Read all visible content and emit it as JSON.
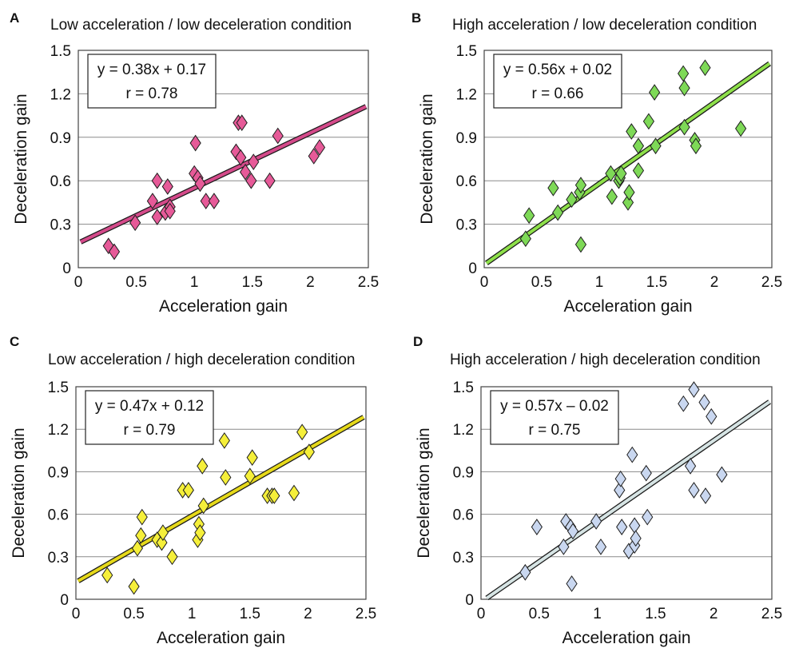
{
  "figure": {
    "axis": {
      "xlabel": "Acceleration gain",
      "ylabel": "Deceleration gain",
      "x_ticks": [
        "0",
        "0.5",
        "1",
        "1.5",
        "2",
        "2.5"
      ],
      "y_ticks": [
        "0",
        "0.3",
        "0.6",
        "0.9",
        "1.2",
        "1.5"
      ],
      "xlim": [
        0,
        2.5
      ],
      "ylim": [
        0,
        1.5
      ],
      "grid": "horizontal"
    }
  },
  "chart_data": [
    {
      "type": "scatter",
      "panel_label": "A",
      "title": "Low acceleration / low deceleration condition",
      "xlabel": "Acceleration gain",
      "ylabel": "Deceleration gain",
      "xlim": [
        0,
        2.5
      ],
      "ylim": [
        0,
        1.5
      ],
      "marker_color": "#e65a98",
      "line_color": "#d44a8a",
      "equation": "y = 0.38x + 0.17",
      "r_text": "r  = 0.78",
      "fit": {
        "slope": 0.38,
        "intercept": 0.17,
        "x_range": [
          0.02,
          2.48
        ]
      },
      "points": [
        [
          0.26,
          0.15
        ],
        [
          0.31,
          0.11
        ],
        [
          0.49,
          0.31
        ],
        [
          0.64,
          0.46
        ],
        [
          0.68,
          0.6
        ],
        [
          0.68,
          0.35
        ],
        [
          0.75,
          0.38
        ],
        [
          0.77,
          0.56
        ],
        [
          0.79,
          0.42
        ],
        [
          0.79,
          0.39
        ],
        [
          1.0,
          0.65
        ],
        [
          1.01,
          0.86
        ],
        [
          1.03,
          0.62
        ],
        [
          1.05,
          0.58
        ],
        [
          1.1,
          0.46
        ],
        [
          1.17,
          0.46
        ],
        [
          1.36,
          0.8
        ],
        [
          1.38,
          1.0
        ],
        [
          1.41,
          1.0
        ],
        [
          1.4,
          0.76
        ],
        [
          1.44,
          0.66
        ],
        [
          1.49,
          0.6
        ],
        [
          1.51,
          0.73
        ],
        [
          1.65,
          0.6
        ],
        [
          1.72,
          0.91
        ],
        [
          2.03,
          0.77
        ],
        [
          2.08,
          0.83
        ]
      ]
    },
    {
      "type": "scatter",
      "panel_label": "B",
      "title": "High acceleration / low deceleration condition",
      "xlabel": "Acceleration gain",
      "ylabel": "Deceleration gain",
      "xlim": [
        0,
        2.5
      ],
      "ylim": [
        0,
        1.5
      ],
      "marker_color": "#7ed957",
      "line_color": "#8ee04a",
      "equation": "y = 0.56x + 0.02",
      "r_text": "r  = 0.66",
      "fit": {
        "slope": 0.56,
        "intercept": 0.02,
        "x_range": [
          0.02,
          2.48
        ]
      },
      "points": [
        [
          0.36,
          0.2
        ],
        [
          0.39,
          0.36
        ],
        [
          0.6,
          0.55
        ],
        [
          0.64,
          0.38
        ],
        [
          0.76,
          0.47
        ],
        [
          0.83,
          0.52
        ],
        [
          0.84,
          0.57
        ],
        [
          0.84,
          0.16
        ],
        [
          1.1,
          0.65
        ],
        [
          1.11,
          0.49
        ],
        [
          1.17,
          0.6
        ],
        [
          1.18,
          0.62
        ],
        [
          1.19,
          0.65
        ],
        [
          1.25,
          0.45
        ],
        [
          1.26,
          0.52
        ],
        [
          1.28,
          0.94
        ],
        [
          1.34,
          0.67
        ],
        [
          1.34,
          0.84
        ],
        [
          1.43,
          1.01
        ],
        [
          1.48,
          1.21
        ],
        [
          1.49,
          0.84
        ],
        [
          1.73,
          1.34
        ],
        [
          1.74,
          1.24
        ],
        [
          1.74,
          0.97
        ],
        [
          1.83,
          0.88
        ],
        [
          1.84,
          0.84
        ],
        [
          1.92,
          1.38
        ],
        [
          2.23,
          0.96
        ]
      ]
    },
    {
      "type": "scatter",
      "panel_label": "C",
      "title": "Low acceleration / high deceleration condition",
      "xlabel": "Acceleration gain",
      "ylabel": "Deceleration gain",
      "xlim": [
        0,
        2.5
      ],
      "ylim": [
        0,
        1.5
      ],
      "marker_color": "#f5ef3a",
      "line_color": "#e6d91a",
      "equation": "y = 0.47x + 0.12",
      "r_text": "r  = 0.79",
      "fit": {
        "slope": 0.47,
        "intercept": 0.12,
        "x_range": [
          0.02,
          2.48
        ]
      },
      "points": [
        [
          0.27,
          0.17
        ],
        [
          0.5,
          0.09
        ],
        [
          0.53,
          0.36
        ],
        [
          0.56,
          0.45
        ],
        [
          0.57,
          0.58
        ],
        [
          0.7,
          0.42
        ],
        [
          0.74,
          0.4
        ],
        [
          0.75,
          0.47
        ],
        [
          0.83,
          0.3
        ],
        [
          0.92,
          0.77
        ],
        [
          0.97,
          0.77
        ],
        [
          1.05,
          0.42
        ],
        [
          1.06,
          0.53
        ],
        [
          1.07,
          0.47
        ],
        [
          1.09,
          0.94
        ],
        [
          1.1,
          0.66
        ],
        [
          1.28,
          1.12
        ],
        [
          1.29,
          0.86
        ],
        [
          1.5,
          0.87
        ],
        [
          1.52,
          1.0
        ],
        [
          1.65,
          0.73
        ],
        [
          1.69,
          0.73
        ],
        [
          1.71,
          0.73
        ],
        [
          1.88,
          0.75
        ],
        [
          1.95,
          1.18
        ],
        [
          2.01,
          1.04
        ]
      ]
    },
    {
      "type": "scatter",
      "panel_label": "D",
      "title": "High acceleration / high deceleration condition",
      "xlabel": "Acceleration gain",
      "ylabel": "Deceleration gain",
      "xlim": [
        0,
        2.5
      ],
      "ylim": [
        0,
        1.5
      ],
      "marker_color": "#c9d7f0",
      "line_color": "#d6e4e4",
      "equation": "y = 0.57x – 0.02",
      "r_text": "r  = 0.75",
      "fit": {
        "slope": 0.57,
        "intercept": -0.02,
        "x_range": [
          0.05,
          2.48
        ]
      },
      "points": [
        [
          0.38,
          0.19
        ],
        [
          0.48,
          0.51
        ],
        [
          0.71,
          0.37
        ],
        [
          0.73,
          0.55
        ],
        [
          0.77,
          0.51
        ],
        [
          0.78,
          0.11
        ],
        [
          0.79,
          0.48
        ],
        [
          0.99,
          0.55
        ],
        [
          1.03,
          0.37
        ],
        [
          1.19,
          0.77
        ],
        [
          1.2,
          0.85
        ],
        [
          1.21,
          0.51
        ],
        [
          1.27,
          0.34
        ],
        [
          1.3,
          1.02
        ],
        [
          1.32,
          0.52
        ],
        [
          1.32,
          0.38
        ],
        [
          1.33,
          0.43
        ],
        [
          1.42,
          0.89
        ],
        [
          1.43,
          0.58
        ],
        [
          1.74,
          1.38
        ],
        [
          1.8,
          0.94
        ],
        [
          1.83,
          1.48
        ],
        [
          1.83,
          0.77
        ],
        [
          1.92,
          1.39
        ],
        [
          1.93,
          0.73
        ],
        [
          1.98,
          1.29
        ],
        [
          2.07,
          0.88
        ]
      ]
    }
  ]
}
